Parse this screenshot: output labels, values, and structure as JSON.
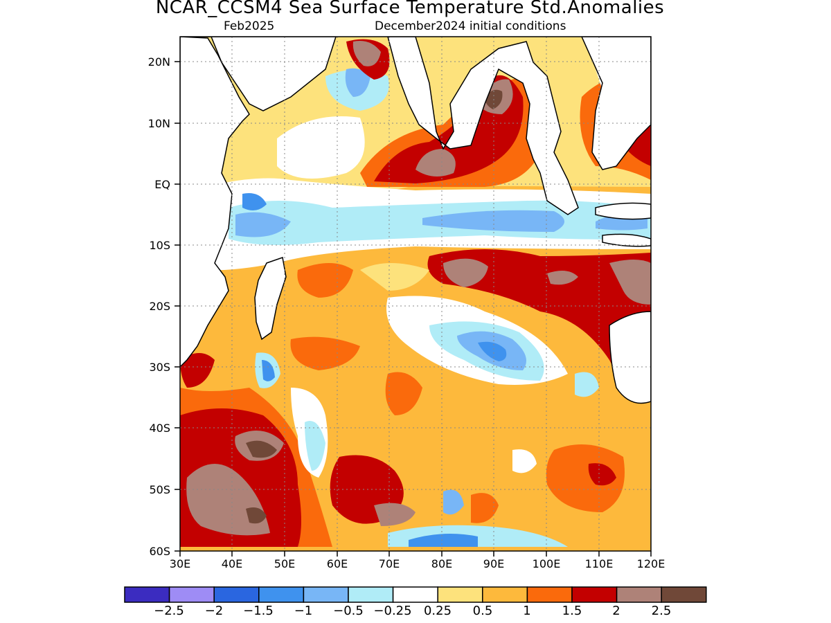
{
  "title": "NCAR_CCSM4 Sea Surface Temperature Std.Anomalies",
  "subtitle_left": "Feb2025",
  "subtitle_right": "December2024 initial conditions",
  "map": {
    "lon_range": [
      "30E",
      "120E"
    ],
    "lat_range": [
      "60S",
      "24N"
    ],
    "lat_ticks": [
      "20N",
      "10N",
      "EQ",
      "10S",
      "20S",
      "30S",
      "40S",
      "50S",
      "60S"
    ],
    "lon_ticks": [
      "30E",
      "40E",
      "50E",
      "60E",
      "70E",
      "80E",
      "90E",
      "100E",
      "110E",
      "120E"
    ],
    "grid": "dotted"
  },
  "colorbar": {
    "labels": [
      "−2.5",
      "−2",
      "−1.5",
      "−1",
      "−0.5",
      "−0.25",
      "0.25",
      "0.5",
      "1",
      "1.5",
      "2",
      "2.5"
    ],
    "colors": [
      "#3b2cc0",
      "#9e8cf5",
      "#2a66e0",
      "#3f92ee",
      "#78b6f6",
      "#b0ecf7",
      "#ffffff",
      "#fde27c",
      "#fdb93c",
      "#fa6a0c",
      "#c30000",
      "#ae8278",
      "#704838"
    ]
  }
}
